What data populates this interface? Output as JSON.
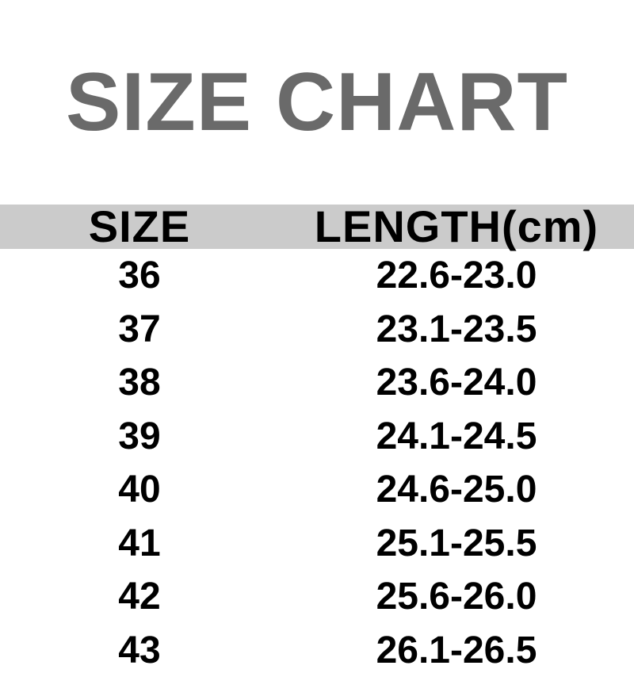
{
  "title": {
    "text": "SIZE CHART"
  },
  "table": {
    "header": {
      "size_label": "SIZE",
      "length_label": "LENGTH(cm)"
    },
    "rows": [
      {
        "size": "36",
        "length": "22.6-23.0"
      },
      {
        "size": "37",
        "length": "23.1-23.5"
      },
      {
        "size": "38",
        "length": "23.6-24.0"
      },
      {
        "size": "39",
        "length": "24.1-24.5"
      },
      {
        "size": "40",
        "length": "24.6-25.0"
      },
      {
        "size": "41",
        "length": "25.1-25.5"
      },
      {
        "size": "42",
        "length": "25.6-26.0"
      },
      {
        "size": "43",
        "length": "26.1-26.5"
      }
    ]
  },
  "colors": {
    "background": "#ffffff",
    "title_text": "#6a6a6a",
    "header_band": "#cbcbcb",
    "table_text": "#000000"
  }
}
